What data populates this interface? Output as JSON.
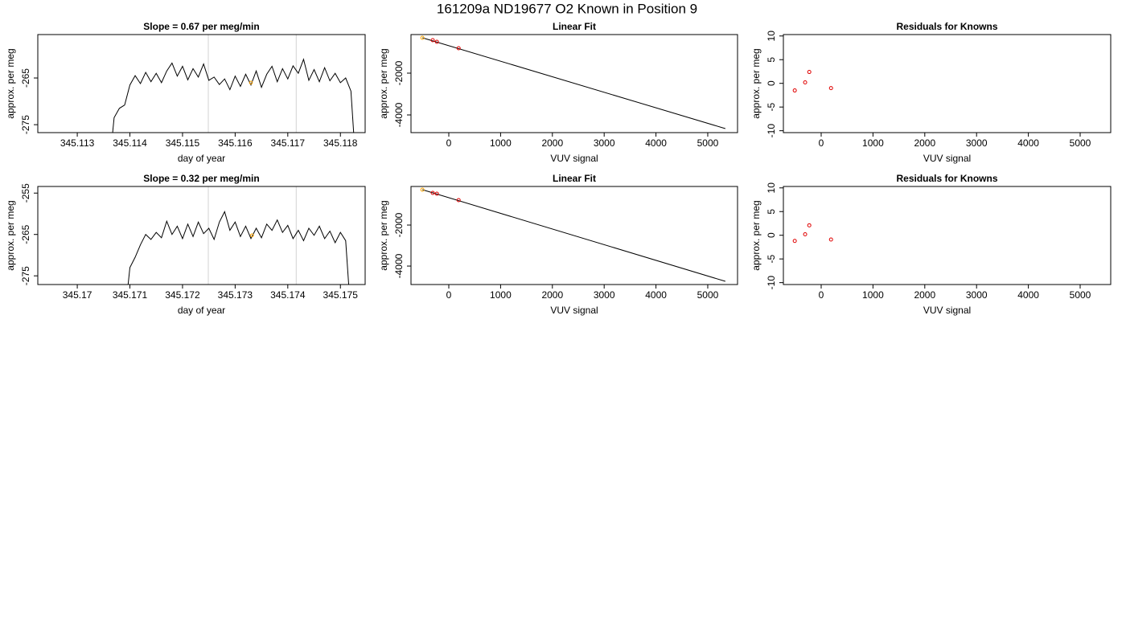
{
  "title": "161209a     ND19677   O2 Known in Position  9",
  "chart_data": [
    {
      "type": "line",
      "title": "Slope =  0.67  per meg/min",
      "xlabel": "day of year",
      "ylabel": "approx. per meg",
      "xlim": [
        345.11225,
        345.11847
      ],
      "ylim": [
        -276.7,
        -255.7
      ],
      "xticks": [
        345.113,
        345.114,
        345.115,
        345.116,
        345.117,
        345.118
      ],
      "yticks": [
        -275,
        -265
      ],
      "color": "#000000",
      "vlines": [
        345.11549,
        345.11716
      ],
      "vline_color": "#d3d3d3",
      "marker": {
        "x": 345.1163,
        "y": -266.0,
        "color": "#ffa500"
      },
      "x": [
        345.1136,
        345.1137,
        345.1138,
        345.1139,
        345.114,
        345.1141,
        345.1142,
        345.1143,
        345.1144,
        345.1145,
        345.1146,
        345.1147,
        345.1148,
        345.1149,
        345.115,
        345.1151,
        345.1152,
        345.1153,
        345.1154,
        345.1155,
        345.1156,
        345.1157,
        345.1158,
        345.1159,
        345.116,
        345.1161,
        345.1162,
        345.1163,
        345.1164,
        345.1165,
        345.1166,
        345.1167,
        345.1168,
        345.1169,
        345.117,
        345.1171,
        345.1172,
        345.1173,
        345.1174,
        345.1175,
        345.1176,
        345.1177,
        345.1178,
        345.1179,
        345.118,
        345.1181,
        345.1182,
        345.1183
      ],
      "values": [
        -285,
        -273.5,
        -271.5,
        -270.8,
        -266.5,
        -264.5,
        -266.2,
        -263.8,
        -265.8,
        -264.0,
        -266.0,
        -263.5,
        -261.8,
        -264.6,
        -262.5,
        -265.4,
        -263.0,
        -264.8,
        -262.0,
        -265.5,
        -264.8,
        -266.4,
        -265.2,
        -267.5,
        -264.6,
        -266.8,
        -264.2,
        -266.5,
        -263.5,
        -267.0,
        -264.2,
        -262.5,
        -265.8,
        -263.0,
        -265.2,
        -262.4,
        -264.0,
        -261.0,
        -265.5,
        -263.2,
        -265.8,
        -262.8,
        -265.6,
        -264.0,
        -266.0,
        -265.0,
        -267.8,
        -285
      ]
    },
    {
      "type": "scatter",
      "title": "Linear Fit",
      "xlabel": "VUV signal",
      "ylabel": "approx. per meg",
      "xlim": [
        -730,
        5575
      ],
      "ylim": [
        -4846,
        -154
      ],
      "xticks": [
        0,
        1000,
        2000,
        3000,
        4000,
        5000
      ],
      "yticks": [
        -2000,
        -4000
      ],
      "x": [
        -510,
        -310,
        -230,
        190
      ],
      "values": [
        -308,
        -423,
        -500,
        -808
      ],
      "point_colors": [
        "#ffa500",
        "#e00000",
        "#e00000",
        "#e00000"
      ],
      "fit": {
        "x": [
          -510,
          5340
        ],
        "values": [
          -308,
          -4654
        ],
        "color": "#000000"
      }
    },
    {
      "type": "scatter",
      "title": "Residuals for Knowns",
      "xlabel": "VUV signal",
      "ylabel": "approx. per meg",
      "xlim": [
        -730,
        5590
      ],
      "ylim": [
        -10.4,
        10.3
      ],
      "xticks": [
        0,
        1000,
        2000,
        3000,
        4000,
        5000
      ],
      "yticks": [
        -10,
        -5,
        0,
        5,
        10
      ],
      "x": [
        -510,
        -310,
        -230,
        190
      ],
      "values": [
        -1.5,
        0.2,
        2.4,
        -1.0
      ],
      "point_colors": [
        "#e00000",
        "#e00000",
        "#e00000",
        "#e00000"
      ]
    },
    {
      "type": "line",
      "title": "Slope =  0.32  per meg/min",
      "xlabel": "day of year",
      "ylabel": "approx. per meg",
      "xlim": [
        345.16925,
        345.17547
      ],
      "ylim": [
        -277.1,
        -253.4
      ],
      "xticks": [
        345.17,
        345.171,
        345.172,
        345.173,
        345.174,
        345.175
      ],
      "yticks": [
        -275,
        -265,
        -255
      ],
      "color": "#000000",
      "vlines": [
        345.17249,
        345.17416
      ],
      "vline_color": "#d3d3d3",
      "marker": {
        "x": 345.17332,
        "y": -265.2,
        "color": "#ffa500"
      },
      "x": [
        345.1709,
        345.171,
        345.1711,
        345.1712,
        345.1713,
        345.1714,
        345.1715,
        345.1716,
        345.1717,
        345.1718,
        345.1719,
        345.172,
        345.1721,
        345.1722,
        345.1723,
        345.1724,
        345.1725,
        345.1726,
        345.1727,
        345.1728,
        345.1729,
        345.173,
        345.1731,
        345.1732,
        345.1733,
        345.1734,
        345.1735,
        345.1736,
        345.1737,
        345.1738,
        345.1739,
        345.174,
        345.1741,
        345.1742,
        345.1743,
        345.1744,
        345.1745,
        345.1746,
        345.1747,
        345.1748,
        345.1749,
        345.175,
        345.1751,
        345.1752
      ],
      "values": [
        -285,
        -273.0,
        -270.5,
        -267.5,
        -265.0,
        -266.2,
        -264.5,
        -265.8,
        -261.8,
        -265.0,
        -263.0,
        -266.0,
        -262.5,
        -265.5,
        -262.0,
        -264.8,
        -263.5,
        -266.2,
        -262.0,
        -259.5,
        -264.0,
        -262.0,
        -265.5,
        -263.0,
        -266.0,
        -263.5,
        -265.8,
        -262.5,
        -264.0,
        -261.5,
        -264.5,
        -262.8,
        -266.0,
        -264.0,
        -266.5,
        -263.5,
        -265.2,
        -263.0,
        -266.0,
        -264.2,
        -267.0,
        -264.5,
        -266.5,
        -285
      ]
    },
    {
      "type": "scatter",
      "title": "Linear Fit",
      "xlabel": "VUV signal",
      "ylabel": "approx. per meg",
      "xlim": [
        -730,
        5575
      ],
      "ylim": [
        -4900,
        -118
      ],
      "xticks": [
        0,
        1000,
        2000,
        3000,
        4000,
        5000
      ],
      "yticks": [
        -2000,
        -4000
      ],
      "x": [
        -510,
        -310,
        -230,
        190
      ],
      "values": [
        -275,
        -432,
        -471,
        -785
      ],
      "point_colors": [
        "#ffa500",
        "#e00000",
        "#e00000",
        "#e00000"
      ],
      "fit": {
        "x": [
          -510,
          5340
        ],
        "values": [
          -275,
          -4744
        ],
        "color": "#000000"
      }
    },
    {
      "type": "scatter",
      "title": "Residuals for Knowns",
      "xlabel": "VUV signal",
      "ylabel": "approx. per meg",
      "xlim": [
        -730,
        5590
      ],
      "ylim": [
        -10.4,
        10.3
      ],
      "xticks": [
        0,
        1000,
        2000,
        3000,
        4000,
        5000
      ],
      "yticks": [
        -10,
        -5,
        0,
        5,
        10
      ],
      "x": [
        -510,
        -310,
        -230,
        190
      ],
      "values": [
        -1.2,
        0.2,
        2.1,
        -0.9
      ],
      "point_colors": [
        "#e00000",
        "#e00000",
        "#e00000",
        "#e00000"
      ]
    }
  ]
}
